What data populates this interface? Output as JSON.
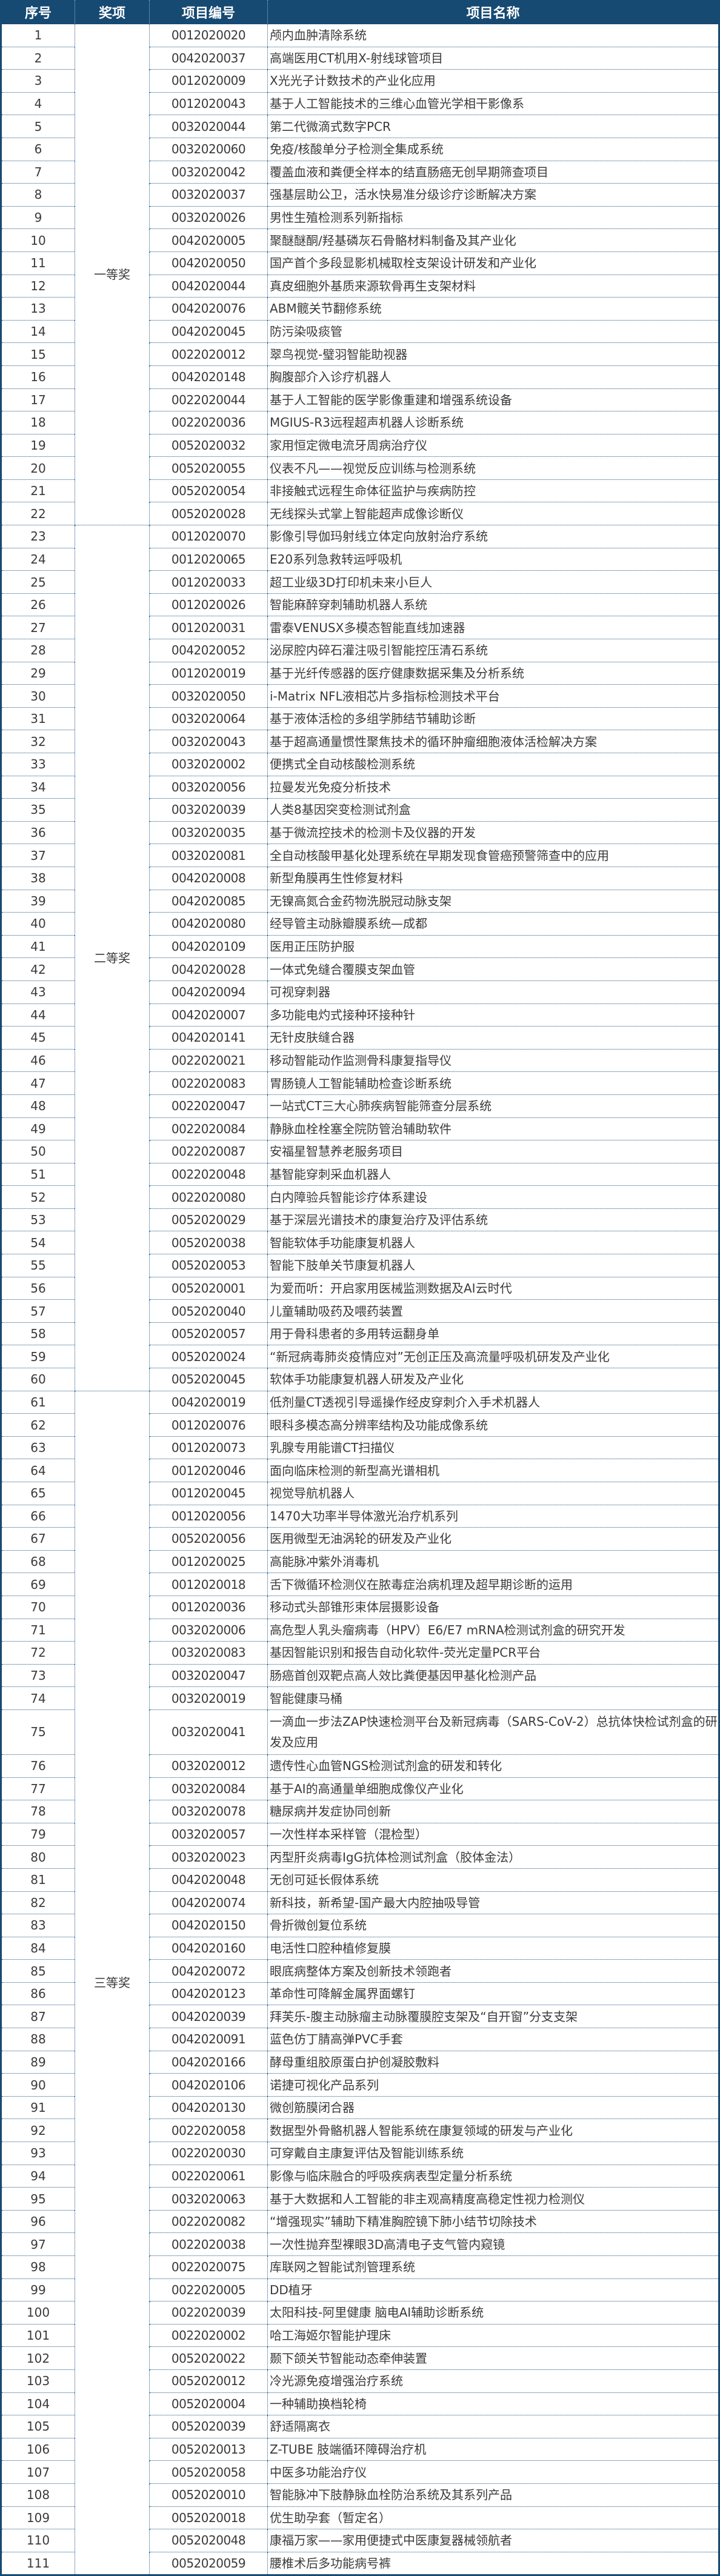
{
  "headers": [
    "序号",
    "奖项",
    "项目编号",
    "项目名称"
  ],
  "header_color": "#174a72",
  "groups": [
    {
      "award": "一等奖",
      "rows": [
        [
          "1",
          "0012020020",
          "颅内血肿清除系统"
        ],
        [
          "2",
          "0042020037",
          "高端医用CT机用X-射线球管项目"
        ],
        [
          "3",
          "0012020009",
          "X光光子计数技术的产业化应用"
        ],
        [
          "4",
          "0012020043",
          "基于人工智能技术的三维心血管光学相干影像系"
        ],
        [
          "5",
          "0032020044",
          "第二代微滴式数字PCR"
        ],
        [
          "6",
          "0032020060",
          "免疫/核酸单分子检测全集成系统"
        ],
        [
          "7",
          "0032020042",
          "覆盖血液和粪便全样本的结直肠癌无创早期筛查项目"
        ],
        [
          "8",
          "0032020037",
          "强基层助公卫，活水快易准分级诊疗诊断解决方案"
        ],
        [
          "9",
          "0032020026",
          "男性生殖检测系列新指标"
        ],
        [
          "10",
          "0042020005",
          "聚醚醚酮/羟基磷灰石骨骼材料制备及其产业化"
        ],
        [
          "11",
          "0042020050",
          "国产首个多段显影机械取栓支架设计研发和产业化"
        ],
        [
          "12",
          "0042020044",
          "真皮细胞外基质来源软骨再生支架材料"
        ],
        [
          "13",
          "0042020076",
          "ABM髋关节翻修系统"
        ],
        [
          "14",
          "0042020045",
          "防污染吸痰管"
        ],
        [
          "15",
          "0022020012",
          "翠鸟视觉-璧羽智能助视器"
        ],
        [
          "16",
          "0042020148",
          "胸腹部介入诊疗机器人"
        ],
        [
          "17",
          "0022020044",
          "基于人工智能的医学影像重建和增强系统设备"
        ],
        [
          "18",
          "0022020036",
          "MGIUS-R3远程超声机器人诊断系统"
        ],
        [
          "19",
          "0052020032",
          "家用恒定微电流牙周病治疗仪"
        ],
        [
          "20",
          "0052020055",
          "仪表不凡——视觉反应训练与检测系统"
        ],
        [
          "21",
          "0052020054",
          "非接触式远程生命体征监护与疾病防控"
        ],
        [
          "22",
          "0052020028",
          "无线探头式掌上智能超声成像诊断仪"
        ]
      ]
    },
    {
      "award": "二等奖",
      "rows": [
        [
          "23",
          "0012020070",
          "影像引导伽玛射线立体定向放射治疗系统"
        ],
        [
          "24",
          "0012020065",
          "E20系列急救转运呼吸机"
        ],
        [
          "25",
          "0012020033",
          "超工业级3D打印机未来小巨人"
        ],
        [
          "26",
          "0012020026",
          "智能麻醉穿刺辅助机器人系统"
        ],
        [
          "27",
          "0012020031",
          "雷泰VENUSX多模态智能直线加速器"
        ],
        [
          "28",
          "0042020052",
          "泌尿腔内碎石灌注吸引智能控压清石系统"
        ],
        [
          "29",
          "0012020019",
          "基于光纤传感器的医疗健康数据采集及分析系统"
        ],
        [
          "30",
          "0032020050",
          "i-Matrix NFL液相芯片多指标检测技术平台"
        ],
        [
          "31",
          "0032020064",
          "基于液体活检的多组学肺结节辅助诊断"
        ],
        [
          "32",
          "0032020043",
          "基于超高通量惯性聚焦技术的循环肿瘤细胞液体活检解决方案"
        ],
        [
          "33",
          "0032020002",
          "便携式全自动核酸检测系统"
        ],
        [
          "34",
          "0032020056",
          "拉曼发光免疫分析技术"
        ],
        [
          "35",
          "0032020039",
          "人类8基因突变检测试剂盒"
        ],
        [
          "36",
          "0032020035",
          "基于微流控技术的检测卡及仪器的开发"
        ],
        [
          "37",
          "0032020081",
          "全自动核酸甲基化处理系统在早期发现食管癌预警筛查中的应用"
        ],
        [
          "38",
          "0042020008",
          "新型角膜再生性修复材料"
        ],
        [
          "39",
          "0042020085",
          "无镍高氮合金药物洗脱冠动脉支架"
        ],
        [
          "40",
          "0042020080",
          "经导管主动脉瓣膜系统—成都"
        ],
        [
          "41",
          "0042020109",
          "医用正压防护服"
        ],
        [
          "42",
          "0042020028",
          "一体式免缝合覆膜支架血管"
        ],
        [
          "43",
          "0042020094",
          "可视穿刺器"
        ],
        [
          "44",
          "0042020007",
          "多功能电灼式接种环接种针"
        ],
        [
          "45",
          "0042020141",
          "无针皮肤缝合器"
        ],
        [
          "46",
          "0022020021",
          "移动智能动作监测骨科康复指导仪"
        ],
        [
          "47",
          "0022020083",
          "胃肠镜人工智能辅助检查诊断系统"
        ],
        [
          "48",
          "0022020047",
          "一站式CT三大心肺疾病智能筛查分层系统"
        ],
        [
          "49",
          "0022020084",
          "静脉血栓栓塞全院防管治辅助软件"
        ],
        [
          "50",
          "0022020087",
          "安福星智慧养老服务项目"
        ],
        [
          "51",
          "0022020048",
          "基智能穿刺采血机器人"
        ],
        [
          "52",
          "0022020080",
          "白内障验兵智能诊疗体系建设"
        ],
        [
          "53",
          "0052020029",
          "基于深层光谱技术的康复治疗及评估系统"
        ],
        [
          "54",
          "0052020038",
          "智能软体手功能康复机器人"
        ],
        [
          "55",
          "0052020053",
          "智能下肢单关节康复机器人"
        ],
        [
          "56",
          "0052020001",
          "为爱而听：开启家用医械监测数据及AI云时代"
        ],
        [
          "57",
          "0052020040",
          "儿童辅助吸药及喂药装置"
        ],
        [
          "58",
          "0052020057",
          "用于骨科患者的多用转运翻身单"
        ],
        [
          "59",
          "0052020024",
          "“新冠病毒肺炎疫情应对”无创正压及高流量呼吸机研发及产业化"
        ],
        [
          "60",
          "0052020045",
          "软体手功能康复机器人研发及产业化"
        ]
      ]
    },
    {
      "award": "三等奖",
      "rows": [
        [
          "61",
          "0042020019",
          "低剂量CT透视引导遥操作经皮穿刺介入手术机器人"
        ],
        [
          "62",
          "0012020076",
          "眼科多模态高分辨率结构及功能成像系统"
        ],
        [
          "63",
          "0012020073",
          "乳腺专用能谱CT扫描仪"
        ],
        [
          "64",
          "0012020046",
          "面向临床检测的新型高光谱相机"
        ],
        [
          "65",
          "0012020045",
          "视觉导航机器人"
        ],
        [
          "66",
          "0012020056",
          "1470大功率半导体激光治疗机系列"
        ],
        [
          "67",
          "0052020056",
          "医用微型无油涡轮的研发及产业化"
        ],
        [
          "68",
          "0012020025",
          "高能脉冲紫外消毒机"
        ],
        [
          "69",
          "0012020018",
          "舌下微循环检测仪在脓毒症治病机理及超早期诊断的运用"
        ],
        [
          "70",
          "0012020036",
          "移动式头部锥形束体层摄影设备"
        ],
        [
          "71",
          "0032020006",
          "高危型人乳头瘤病毒（HPV）E6/E7 mRNA检测试剂盒的研究开发"
        ],
        [
          "72",
          "0032020083",
          "基因智能识别和报告自动化软件-荧光定量PCR平台"
        ],
        [
          "73",
          "0032020047",
          "肠癌首创双靶点高人效比粪便基因甲基化检测产品"
        ],
        [
          "74",
          "0032020019",
          "智能健康马桶"
        ],
        [
          "75",
          "0032020041",
          "一滴血一步法ZAP快速检测平台及新冠病毒（SARS-CoV-2）总抗体快检试剂盒的研发及应用"
        ],
        [
          "76",
          "0032020012",
          "遗传性心血管NGS检测试剂盒的研发和转化"
        ],
        [
          "77",
          "0032020084",
          "基于AI的高通量单细胞成像仪产业化"
        ],
        [
          "78",
          "0032020078",
          "糖尿病并发症协同创新"
        ],
        [
          "79",
          "0032020057",
          "一次性样本采样管（混检型）"
        ],
        [
          "80",
          "0032020023",
          "丙型肝炎病毒IgG抗体检测试剂盒（胶体金法）"
        ],
        [
          "81",
          "0042020048",
          "无创可延长假体系统"
        ],
        [
          "82",
          "0042020074",
          "新科技，新希望-国产最大内腔抽吸导管"
        ],
        [
          "83",
          "0042020150",
          "骨折微创复位系统"
        ],
        [
          "84",
          "0042020160",
          "电活性口腔种植修复膜"
        ],
        [
          "85",
          "0042020072",
          "眼底病整体方案及创新技术领跑者"
        ],
        [
          "86",
          "0042020123",
          "革命性可降解金属界面螺钉"
        ],
        [
          "87",
          "0042020039",
          "拜芙乐-腹主动脉瘤主动脉覆膜腔支架及“自开窗”分支支架"
        ],
        [
          "88",
          "0042020091",
          "蓝色仿丁腈高弹PVC手套"
        ],
        [
          "89",
          "0042020166",
          "酵母重组胶原蛋白护创凝胶敷料"
        ],
        [
          "90",
          "0042020106",
          "诺捷可视化产品系列"
        ],
        [
          "91",
          "0042020130",
          "微创筋膜闭合器"
        ],
        [
          "92",
          "0022020058",
          "数据型外骨骼机器人智能系统在康复领域的研发与产业化"
        ],
        [
          "93",
          "0022020030",
          "可穿戴自主康复评估及智能训练系统"
        ],
        [
          "94",
          "0022020061",
          "影像与临床融合的呼吸疾病表型定量分析系统"
        ],
        [
          "95",
          "0032020063",
          "基于大数据和人工智能的非主观高精度高稳定性视力检测仪"
        ],
        [
          "96",
          "0022020082",
          "“增强现实”辅助下精准胸腔镜下肺小结节切除技术"
        ],
        [
          "97",
          "0022020038",
          "一次性抛弃型裸眼3D高清电子支气管内窥镜"
        ],
        [
          "98",
          "0022020075",
          "库联网之智能试剂管理系统"
        ],
        [
          "99",
          "0022020005",
          "DD植牙"
        ],
        [
          "100",
          "0022020039",
          "太阳科技-阿里健康 脑电AI辅助诊断系统"
        ],
        [
          "101",
          "0022020002",
          "哈工海姬尔智能护理床"
        ],
        [
          "102",
          "0052020022",
          "颞下颌关节智能动态牵伸装置"
        ],
        [
          "103",
          "0052020012",
          "冷光源免疫增强治疗系统"
        ],
        [
          "104",
          "0052020004",
          "一种辅助换档轮椅"
        ],
        [
          "105",
          "0052020039",
          "舒适隔离衣"
        ],
        [
          "106",
          "0052020013",
          "Z-TUBE 肢端循环障碍治疗机"
        ],
        [
          "107",
          "0052020058",
          "中医多功能治疗仪"
        ],
        [
          "108",
          "0052020010",
          "智能脉冲下肢静脉血栓防治系统及其系列产品"
        ],
        [
          "109",
          "0052020018",
          "优生助孕套（暂定名）"
        ],
        [
          "110",
          "0052020048",
          "康福万家——家用便捷式中医康复器械领航者"
        ],
        [
          "111",
          "0052020059",
          "腰椎术后多功能病号裤"
        ]
      ]
    }
  ]
}
